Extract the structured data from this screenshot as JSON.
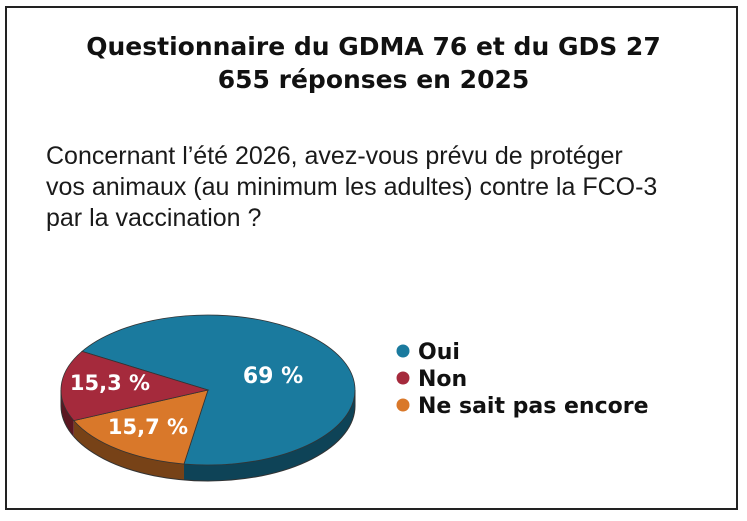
{
  "title": {
    "line1": "Questionnaire du GDMA 76 et du GDS 27",
    "line2": "655 réponses en 2025"
  },
  "question": {
    "line1": "Concernant l’été 2026, avez-vous prévu de protéger",
    "line2": "vos animaux (au minimum les adultes) contre la FCO-3",
    "line3": "par la vaccination ?"
  },
  "chart_data": {
    "type": "pie",
    "title": "Questionnaire du GDMA 76 et du GDS 27",
    "subtitle": "655 réponses en 2025",
    "categories": [
      "Oui",
      "Non",
      "Ne sait pas encore"
    ],
    "values": [
      69,
      15.3,
      15.7
    ],
    "value_labels": [
      "69 %",
      "15,3 %",
      "15,7 %"
    ],
    "colors": [
      "#1a7a9e",
      "#a52a3c",
      "#d9782a"
    ],
    "legend_position": "right"
  }
}
